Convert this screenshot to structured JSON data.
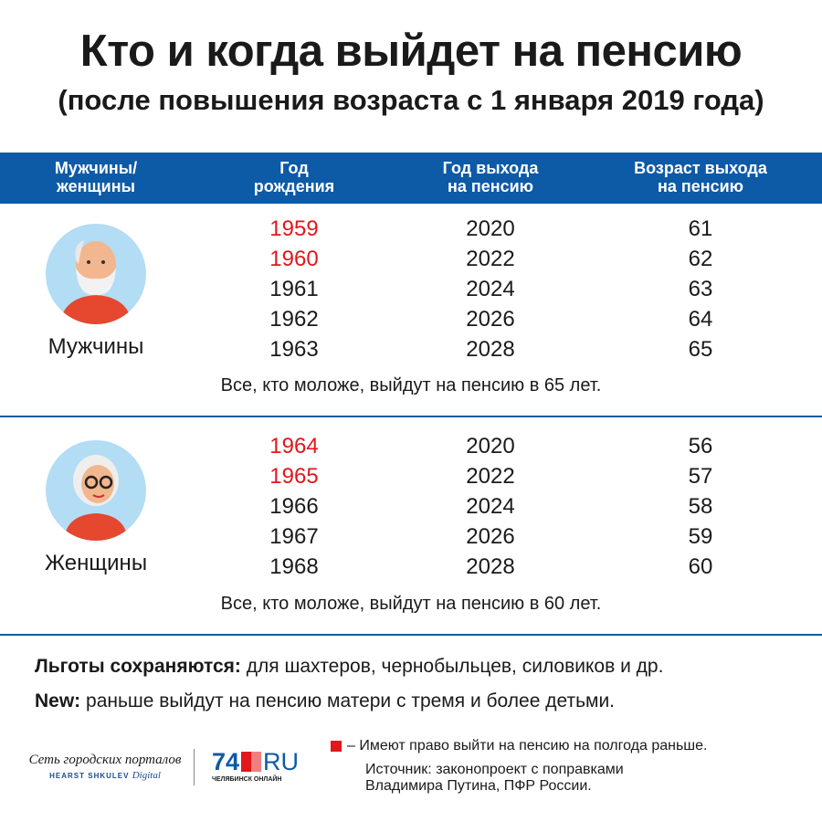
{
  "title": "Кто и когда выйдет на пенсию",
  "subtitle": "(после повышения возраста с 1 января 2019 года)",
  "columns": [
    "Мужчины/\nженщины",
    "Год\nрождения",
    "Год выхода\nна пенсию",
    "Возраст выхода\nна пенсию"
  ],
  "columns_lines": [
    [
      "Мужчины/",
      "женщины"
    ],
    [
      "Год",
      "рождения"
    ],
    [
      "Год выхода",
      "на пенсию"
    ],
    [
      "Возраст выхода",
      "на пенсию"
    ]
  ],
  "men": {
    "label": "Мужчины",
    "rows": [
      {
        "birth": "1959",
        "retire_year": "2020",
        "age": "61",
        "highlight": true
      },
      {
        "birth": "1960",
        "retire_year": "2022",
        "age": "62",
        "highlight": true
      },
      {
        "birth": "1961",
        "retire_year": "2024",
        "age": "63",
        "highlight": false
      },
      {
        "birth": "1962",
        "retire_year": "2026",
        "age": "64",
        "highlight": false
      },
      {
        "birth": "1963",
        "retire_year": "2028",
        "age": "65",
        "highlight": false
      }
    ],
    "note": "Все, кто моложе, выйдут на пенсию в 65 лет."
  },
  "women": {
    "label": "Женщины",
    "rows": [
      {
        "birth": "1964",
        "retire_year": "2020",
        "age": "56",
        "highlight": true
      },
      {
        "birth": "1965",
        "retire_year": "2022",
        "age": "57",
        "highlight": true
      },
      {
        "birth": "1966",
        "retire_year": "2024",
        "age": "58",
        "highlight": false
      },
      {
        "birth": "1967",
        "retire_year": "2026",
        "age": "59",
        "highlight": false
      },
      {
        "birth": "1968",
        "retire_year": "2028",
        "age": "60",
        "highlight": false
      }
    ],
    "note": "Все, кто моложе, выйдут на пенсию в 60 лет."
  },
  "benefits": {
    "bold": "Льготы сохраняются:",
    "text": " для шахтеров, чернобыльцев, силовиков и др."
  },
  "new": {
    "bold": "New:",
    "text": " раньше выйдут на пенсию матери с тремя и более детьми."
  },
  "legend": "– Имеют право выйти на пенсию на полгода раньше.",
  "source_line1": "Источник: законопроект с поправками",
  "source_line2": "Владимира Путина, ПФР России.",
  "logos": {
    "network": "Сеть городских порталов",
    "hearst": "HEARST SHKULEV",
    "digital": "Digital",
    "site_num": "74",
    "site_ru": "RU",
    "city": "ЧЕЛЯБИНСК ОНЛАЙН"
  },
  "colors": {
    "header": "#0d5aa7",
    "highlight": "#e3161b",
    "avatar_bg": "#b3dcf5"
  }
}
